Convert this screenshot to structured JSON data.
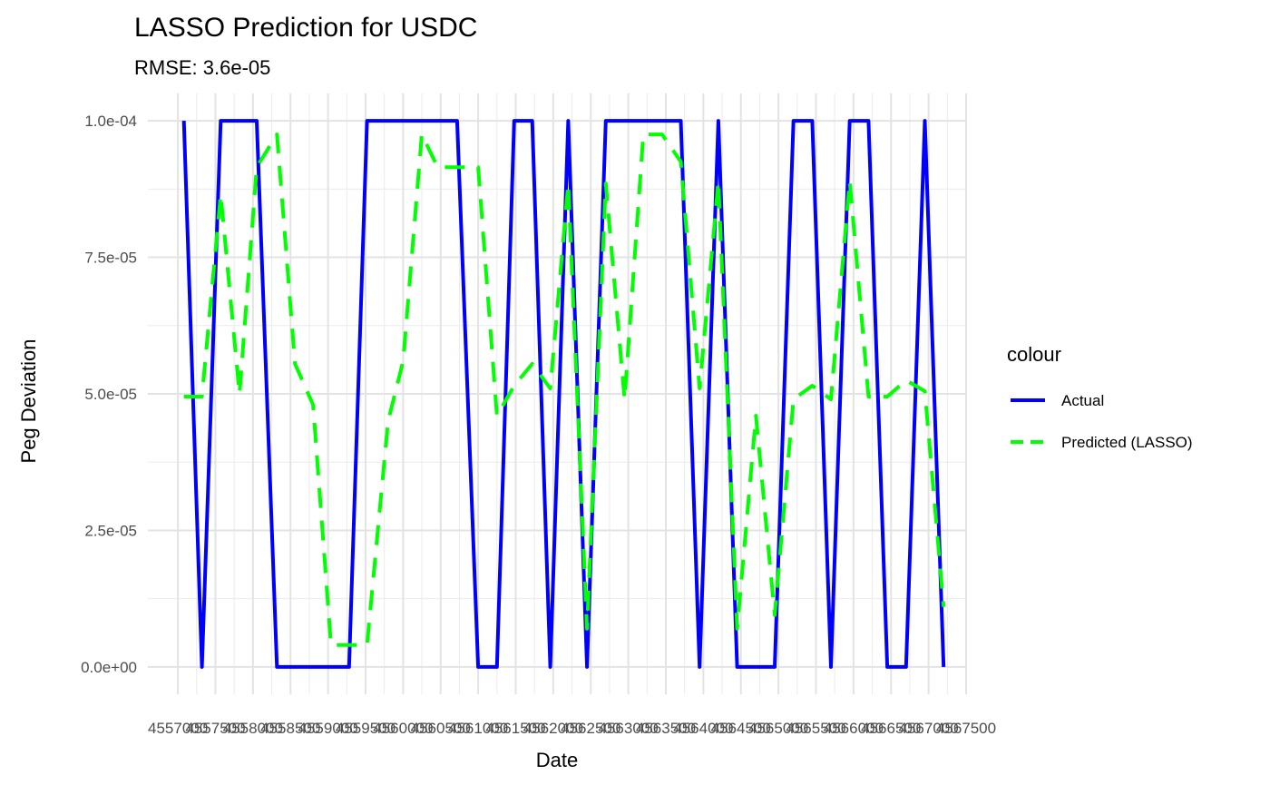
{
  "chart_data": {
    "type": "line",
    "title": "LASSO Prediction for USDC",
    "subtitle": "RMSE: 3.6e-05",
    "xlabel": "Date",
    "ylabel": "Peg Deviation",
    "xlim": [
      4556600,
      4567500
    ],
    "ylim": [
      -5e-06,
      0.000105
    ],
    "x_ticks": [
      4557000,
      4557500,
      4558000,
      4558500,
      4559000,
      4559500,
      4560000,
      4560500,
      4561000,
      4561500,
      4562000,
      4562500,
      4563000,
      4563500,
      4564000,
      4564500,
      4565000,
      4565500,
      4566000,
      4566500,
      4567000,
      4567500
    ],
    "x_tick_labels": [
      "4557000",
      "4557500",
      "4558000",
      "4558500",
      "4559000",
      "4559500",
      "4560000",
      "4560500",
      "4561000",
      "4561500",
      "4562000",
      "4562500",
      "4563000",
      "4563500",
      "4564000",
      "4564500",
      "4565000",
      "4565500",
      "4566000",
      "4566500",
      "4567000",
      "4567500"
    ],
    "y_ticks": [
      0,
      2.5e-05,
      5e-05,
      7.5e-05,
      0.0001
    ],
    "y_tick_labels": [
      "0.0e+00",
      "2.5e-05",
      "5.0e-05",
      "7.5e-05",
      "1.0e-04"
    ],
    "grid": true,
    "legend_title": "colour",
    "legend_position": "right",
    "series": [
      {
        "name": "Actual",
        "color": "#0000ff",
        "dash": "solid",
        "x": [
          4557080,
          4557320,
          4557570,
          4558050,
          4558320,
          4558800,
          4559280,
          4559520,
          4560000,
          4560720,
          4561000,
          4561250,
          4561480,
          4561720,
          4561960,
          4562200,
          4562450,
          4562700,
          4563200,
          4563700,
          4563950,
          4564200,
          4564450,
          4564700,
          4564950,
          4565200,
          4565450,
          4565700,
          4565950,
          4566200,
          4566450,
          4566700,
          4566950,
          4567200
        ],
        "y": [
          0.0001,
          0,
          0.0001,
          0.0001,
          0,
          0,
          0,
          0.0001,
          0.0001,
          0.0001,
          0,
          0,
          0.0001,
          0.0001,
          0,
          0.0001,
          0,
          0.0001,
          0.0001,
          0.0001,
          0,
          0.0001,
          0,
          0,
          0,
          0.0001,
          0.0001,
          0,
          0.0001,
          0.0001,
          0,
          0,
          0.0001,
          0
        ]
      },
      {
        "name": "Predicted (LASSO)",
        "color": "#00ff00",
        "dash": "dashed",
        "x": [
          4557080,
          4557320,
          4557570,
          4557820,
          4558050,
          4558320,
          4558560,
          4558800,
          4559040,
          4559280,
          4559520,
          4559800,
          4560000,
          4560250,
          4560460,
          4560720,
          4561000,
          4561250,
          4561480,
          4561720,
          4561960,
          4562200,
          4562450,
          4562700,
          4562950,
          4563200,
          4563450,
          4563700,
          4563950,
          4564200,
          4564450,
          4564700,
          4564950,
          4565200,
          4565450,
          4565700,
          4565950,
          4566200,
          4566450,
          4566700,
          4566950,
          4567200
        ],
        "y": [
          4.95e-05,
          4.95e-05,
          8.65e-05,
          5e-05,
          9.15e-05,
          9.75e-05,
          5.55e-05,
          4.8e-05,
          4e-06,
          4e-06,
          4e-06,
          4.5e-05,
          5.6e-05,
          9.75e-05,
          9.15e-05,
          9.15e-05,
          9.15e-05,
          4.6e-05,
          5.15e-05,
          5.55e-05,
          5.1e-05,
          8.85e-05,
          7e-06,
          8.85e-05,
          4.9e-05,
          9.75e-05,
          9.75e-05,
          9.25e-05,
          5.1e-05,
          8.9e-05,
          7e-06,
          4.6e-05,
          9.5e-06,
          4.9e-05,
          5.15e-05,
          4.9e-05,
          8.9e-05,
          4.95e-05,
          4.95e-05,
          5.25e-05,
          5.05e-05,
          1.1e-05
        ]
      }
    ]
  }
}
